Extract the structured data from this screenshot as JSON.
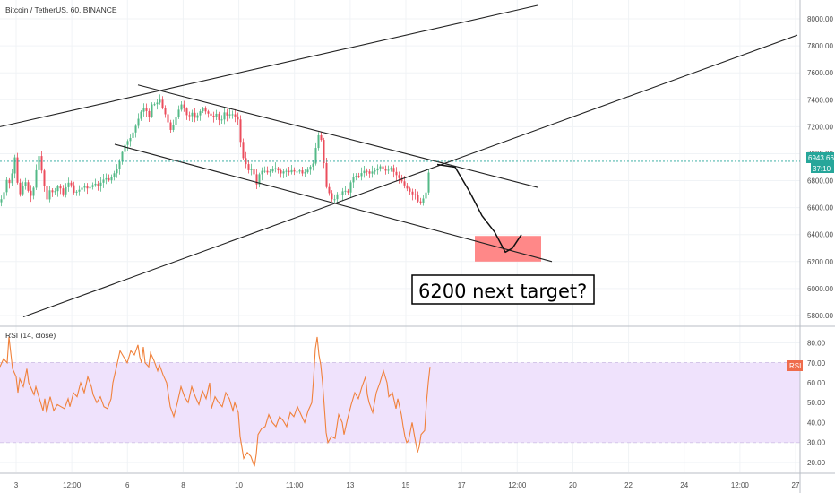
{
  "chart_data": [
    {
      "type": "candlestick",
      "title": "Bitcoin / TetherUS, 60, BINANCE",
      "symbol": "Bitcoin / TetherUS",
      "interval": "60",
      "exchange": "BINANCE",
      "ylim": [
        5720,
        8140
      ],
      "y_ticks": [
        "8000.00",
        "7800.00",
        "7600.00",
        "7400.00",
        "7200.00",
        "7000.00",
        "6800.00",
        "6600.00",
        "6400.00",
        "6200.00",
        "6000.00",
        "5800.00"
      ],
      "last_price": "6943.66",
      "countdown": "37:10",
      "annotation": "6200 next target?",
      "target_zone": [
        6200,
        6390
      ],
      "close_path": [
        [
          0,
          6640
        ],
        [
          4,
          6700
        ],
        [
          8,
          6820
        ],
        [
          12,
          6760
        ],
        [
          16,
          7010
        ],
        [
          18,
          6860
        ],
        [
          20,
          6760
        ],
        [
          22,
          6690
        ],
        [
          26,
          6770
        ],
        [
          30,
          6800
        ],
        [
          32,
          6700
        ],
        [
          36,
          6680
        ],
        [
          40,
          6860
        ],
        [
          44,
          7000
        ],
        [
          46,
          6900
        ],
        [
          48,
          6800
        ],
        [
          50,
          6750
        ],
        [
          52,
          6650
        ],
        [
          56,
          6740
        ],
        [
          60,
          6700
        ],
        [
          64,
          6760
        ],
        [
          68,
          6740
        ],
        [
          70,
          6690
        ],
        [
          74,
          6760
        ],
        [
          78,
          6800
        ],
        [
          82,
          6710
        ],
        [
          86,
          6720
        ],
        [
          90,
          6740
        ],
        [
          94,
          6760
        ],
        [
          98,
          6740
        ],
        [
          102,
          6760
        ],
        [
          106,
          6780
        ],
        [
          110,
          6760
        ],
        [
          114,
          6800
        ],
        [
          118,
          6820
        ],
        [
          122,
          6800
        ],
        [
          126,
          6840
        ],
        [
          130,
          6880
        ],
        [
          134,
          6950
        ],
        [
          138,
          7050
        ],
        [
          142,
          7090
        ],
        [
          146,
          7120
        ],
        [
          150,
          7180
        ],
        [
          154,
          7250
        ],
        [
          158,
          7320
        ],
        [
          162,
          7350
        ],
        [
          166,
          7260
        ],
        [
          170,
          7380
        ],
        [
          174,
          7360
        ],
        [
          178,
          7410
        ],
        [
          182,
          7330
        ],
        [
          186,
          7270
        ],
        [
          190,
          7170
        ],
        [
          194,
          7220
        ],
        [
          198,
          7300
        ],
        [
          202,
          7370
        ],
        [
          206,
          7330
        ],
        [
          210,
          7260
        ],
        [
          214,
          7310
        ],
        [
          218,
          7260
        ],
        [
          222,
          7300
        ],
        [
          226,
          7340
        ],
        [
          230,
          7310
        ],
        [
          234,
          7290
        ],
        [
          238,
          7270
        ],
        [
          242,
          7300
        ],
        [
          246,
          7220
        ],
        [
          250,
          7310
        ],
        [
          254,
          7280
        ],
        [
          258,
          7300
        ],
        [
          262,
          7280
        ],
        [
          266,
          7250
        ],
        [
          270,
          6990
        ],
        [
          274,
          6930
        ],
        [
          278,
          6870
        ],
        [
          282,
          6900
        ],
        [
          286,
          6760
        ],
        [
          290,
          6860
        ],
        [
          294,
          6880
        ],
        [
          298,
          6860
        ],
        [
          302,
          6870
        ],
        [
          306,
          6900
        ],
        [
          310,
          6880
        ],
        [
          314,
          6850
        ],
        [
          318,
          6880
        ],
        [
          322,
          6860
        ],
        [
          326,
          6880
        ],
        [
          330,
          6860
        ],
        [
          334,
          6880
        ],
        [
          338,
          6850
        ],
        [
          342,
          6870
        ],
        [
          346,
          6900
        ],
        [
          350,
          6930
        ],
        [
          352,
          7010
        ],
        [
          354,
          7140
        ],
        [
          358,
          7130
        ],
        [
          360,
          7020
        ],
        [
          362,
          6900
        ],
        [
          364,
          6760
        ],
        [
          368,
          6700
        ],
        [
          372,
          6640
        ],
        [
          376,
          6700
        ],
        [
          380,
          6690
        ],
        [
          384,
          6740
        ],
        [
          388,
          6700
        ],
        [
          392,
          6800
        ],
        [
          396,
          6840
        ],
        [
          400,
          6830
        ],
        [
          404,
          6860
        ],
        [
          408,
          6880
        ],
        [
          412,
          6850
        ],
        [
          416,
          6870
        ],
        [
          420,
          6880
        ],
        [
          424,
          6910
        ],
        [
          428,
          6880
        ],
        [
          432,
          6870
        ],
        [
          436,
          6900
        ],
        [
          440,
          6860
        ],
        [
          444,
          6830
        ],
        [
          448,
          6800
        ],
        [
          452,
          6760
        ],
        [
          456,
          6730
        ],
        [
          460,
          6700
        ],
        [
          464,
          6690
        ],
        [
          468,
          6620
        ],
        [
          472,
          6660
        ],
        [
          476,
          6720
        ],
        [
          480,
          6943.66
        ]
      ],
      "x_ticks": [
        "3",
        "12:00",
        "6",
        "8",
        "10",
        "11:00",
        "13",
        "15",
        "17",
        "12:00",
        "20",
        "22",
        "24",
        "12:00",
        "27"
      ],
      "trend_lines": [
        {
          "from": [
            0,
            7200
          ],
          "to": [
            600,
            8100
          ]
        },
        {
          "from": [
            154,
            7510
          ],
          "to": [
            600,
            6750
          ]
        },
        {
          "from": [
            128,
            7070
          ],
          "to": [
            616,
            6200
          ]
        },
        {
          "from": [
            26,
            5790
          ],
          "to": [
            890,
            7880
          ]
        }
      ],
      "projection_path": [
        [
          488,
          6920
        ],
        [
          508,
          6900
        ],
        [
          524,
          6720
        ],
        [
          538,
          6540
        ],
        [
          552,
          6420
        ],
        [
          564,
          6270
        ],
        [
          572,
          6300
        ],
        [
          582,
          6400
        ]
      ]
    },
    {
      "type": "line",
      "title": "RSI (14, close)",
      "legend_tag": "RSI",
      "ylim": [
        15,
        87
      ],
      "y_ticks": [
        "80.00",
        "70.00",
        "60.00",
        "50.00",
        "40.00",
        "30.00",
        "20.00"
      ],
      "band": [
        30,
        70
      ],
      "values": [
        [
          0,
          68
        ],
        [
          4,
          72
        ],
        [
          8,
          70
        ],
        [
          10,
          83
        ],
        [
          14,
          67
        ],
        [
          18,
          63
        ],
        [
          20,
          55
        ],
        [
          22,
          62
        ],
        [
          26,
          58
        ],
        [
          30,
          67
        ],
        [
          32,
          60
        ],
        [
          36,
          56
        ],
        [
          38,
          54
        ],
        [
          40,
          58
        ],
        [
          44,
          52
        ],
        [
          48,
          46
        ],
        [
          50,
          52
        ],
        [
          52,
          45
        ],
        [
          56,
          53
        ],
        [
          60,
          46
        ],
        [
          64,
          49
        ],
        [
          68,
          48
        ],
        [
          72,
          47
        ],
        [
          76,
          52
        ],
        [
          78,
          48
        ],
        [
          82,
          55
        ],
        [
          86,
          53
        ],
        [
          90,
          60
        ],
        [
          94,
          55
        ],
        [
          98,
          63
        ],
        [
          102,
          58
        ],
        [
          104,
          54
        ],
        [
          108,
          50
        ],
        [
          112,
          53
        ],
        [
          116,
          48
        ],
        [
          120,
          47
        ],
        [
          124,
          52
        ],
        [
          126,
          60
        ],
        [
          130,
          68
        ],
        [
          134,
          76
        ],
        [
          138,
          73
        ],
        [
          142,
          70
        ],
        [
          146,
          76
        ],
        [
          150,
          74
        ],
        [
          154,
          79
        ],
        [
          156,
          73
        ],
        [
          158,
          70
        ],
        [
          160,
          78
        ],
        [
          162,
          70
        ],
        [
          166,
          68
        ],
        [
          168,
          75
        ],
        [
          172,
          71
        ],
        [
          176,
          66
        ],
        [
          178,
          69
        ],
        [
          182,
          64
        ],
        [
          186,
          60
        ],
        [
          190,
          48
        ],
        [
          194,
          43
        ],
        [
          198,
          50
        ],
        [
          202,
          58
        ],
        [
          206,
          53
        ],
        [
          210,
          50
        ],
        [
          214,
          58
        ],
        [
          218,
          53
        ],
        [
          222,
          49
        ],
        [
          226,
          56
        ],
        [
          230,
          52
        ],
        [
          234,
          60
        ],
        [
          236,
          47
        ],
        [
          240,
          53
        ],
        [
          244,
          50
        ],
        [
          248,
          48
        ],
        [
          252,
          55
        ],
        [
          256,
          52
        ],
        [
          260,
          46
        ],
        [
          262,
          50
        ],
        [
          266,
          45
        ],
        [
          268,
          33
        ],
        [
          272,
          22
        ],
        [
          276,
          25
        ],
        [
          280,
          23
        ],
        [
          284,
          18
        ],
        [
          286,
          24
        ],
        [
          288,
          34
        ],
        [
          292,
          37
        ],
        [
          296,
          38
        ],
        [
          300,
          44
        ],
        [
          304,
          40
        ],
        [
          308,
          38
        ],
        [
          312,
          43
        ],
        [
          316,
          41
        ],
        [
          320,
          38
        ],
        [
          324,
          45
        ],
        [
          328,
          43
        ],
        [
          332,
          48
        ],
        [
          336,
          44
        ],
        [
          340,
          40
        ],
        [
          344,
          46
        ],
        [
          348,
          50
        ],
        [
          350,
          62
        ],
        [
          352,
          77
        ],
        [
          354,
          83
        ],
        [
          356,
          74
        ],
        [
          358,
          69
        ],
        [
          360,
          60
        ],
        [
          362,
          48
        ],
        [
          364,
          35
        ],
        [
          366,
          30
        ],
        [
          370,
          33
        ],
        [
          374,
          32
        ],
        [
          378,
          44
        ],
        [
          382,
          40
        ],
        [
          384,
          34
        ],
        [
          388,
          42
        ],
        [
          392,
          49
        ],
        [
          396,
          55
        ],
        [
          400,
          52
        ],
        [
          404,
          58
        ],
        [
          408,
          63
        ],
        [
          410,
          54
        ],
        [
          412,
          50
        ],
        [
          416,
          45
        ],
        [
          420,
          55
        ],
        [
          424,
          60
        ],
        [
          428,
          66
        ],
        [
          432,
          60
        ],
        [
          434,
          53
        ],
        [
          438,
          55
        ],
        [
          442,
          47
        ],
        [
          444,
          52
        ],
        [
          448,
          44
        ],
        [
          450,
          38
        ],
        [
          452,
          33
        ],
        [
          454,
          30
        ],
        [
          456,
          31
        ],
        [
          460,
          40
        ],
        [
          462,
          35
        ],
        [
          464,
          30
        ],
        [
          466,
          25
        ],
        [
          468,
          28
        ],
        [
          470,
          34
        ],
        [
          474,
          36
        ],
        [
          476,
          50
        ],
        [
          478,
          60
        ],
        [
          480,
          68
        ]
      ]
    }
  ]
}
